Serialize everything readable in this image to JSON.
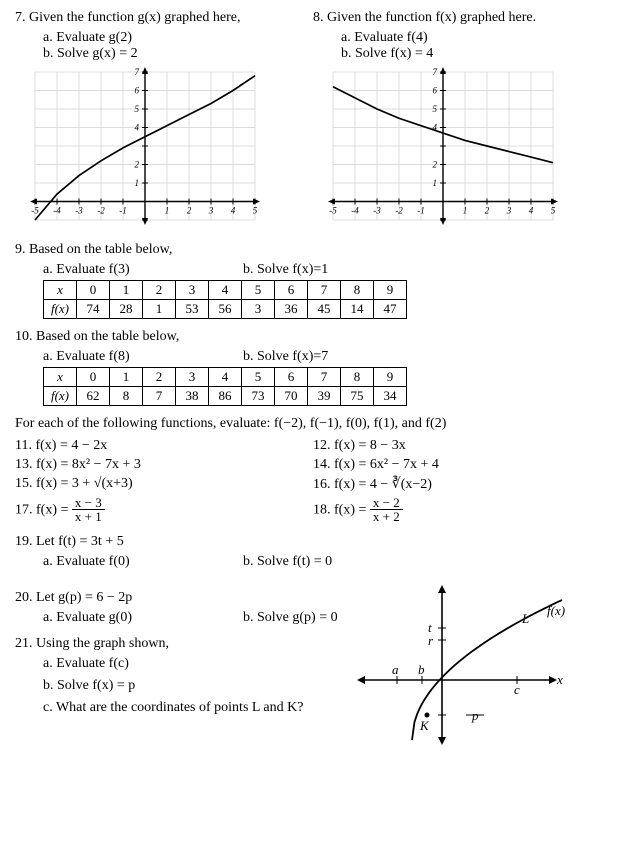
{
  "q7": {
    "stem": "7. Given the function  g(x)  graphed here,",
    "a": "a.    Evaluate  g(2)",
    "b": "b.    Solve  g(x) = 2",
    "chart": {
      "type": "line",
      "xlim": [
        -5,
        5
      ],
      "ylim": [
        -1,
        7
      ],
      "xticks": [
        -5,
        -4,
        -3,
        -2,
        -1,
        1,
        2,
        3,
        4,
        5
      ],
      "yticks": [
        -1,
        1,
        2,
        3,
        4,
        5,
        6,
        7
      ],
      "ylabels_shown": [
        1,
        2,
        4,
        5,
        6,
        7
      ],
      "grid_color": "#d0d0d0",
      "axis_color": "#000000",
      "curve_color": "#000000",
      "points_x": [
        -5,
        -4,
        -3,
        -2,
        -1,
        0,
        1,
        2,
        3,
        4,
        5
      ],
      "points_y": [
        -1,
        0.4,
        1.4,
        2.2,
        2.9,
        3.5,
        4.1,
        4.7,
        5.3,
        6.0,
        6.8
      ]
    }
  },
  "q8": {
    "stem": "8. Given the function  f(x)  graphed here.",
    "a": "a.    Evaluate  f(4)",
    "b": "b.    Solve  f(x) = 4",
    "chart": {
      "type": "line",
      "xlim": [
        -5,
        5
      ],
      "ylim": [
        -1,
        7
      ],
      "xticks": [
        -5,
        -4,
        -3,
        -2,
        -1,
        1,
        2,
        3,
        4,
        5
      ],
      "yticks": [
        -1,
        1,
        2,
        3,
        4,
        5,
        6,
        7
      ],
      "ylabels_shown": [
        1,
        2,
        4,
        5,
        6,
        7
      ],
      "grid_color": "#d0d0d0",
      "axis_color": "#000000",
      "curve_color": "#000000",
      "points_x": [
        -5,
        -4,
        -3,
        -2,
        -1,
        0,
        1,
        2,
        3,
        4,
        5
      ],
      "points_y": [
        6.2,
        5.6,
        5.0,
        4.5,
        4.1,
        3.7,
        3.3,
        3.0,
        2.7,
        2.4,
        2.1
      ]
    }
  },
  "q9": {
    "stem": "9. Based on the table below,",
    "a": "a. Evaluate  f(3)",
    "b": "b. Solve  f(x)=1",
    "table": {
      "header_label": "x",
      "row_label": "f(x)",
      "x": [
        "0",
        "1",
        "2",
        "3",
        "4",
        "5",
        "6",
        "7",
        "8",
        "9"
      ],
      "fx": [
        "74",
        "28",
        "1",
        "53",
        "56",
        "3",
        "36",
        "45",
        "14",
        "47"
      ]
    }
  },
  "q10": {
    "stem": "10. Based on the table below,",
    "a": "a. Evaluate  f(8)",
    "b": "b. Solve  f(x)=7",
    "table": {
      "header_label": "x",
      "row_label": "f(x)",
      "x": [
        "0",
        "1",
        "2",
        "3",
        "4",
        "5",
        "6",
        "7",
        "8",
        "9"
      ],
      "fx": [
        "62",
        "8",
        "7",
        "38",
        "86",
        "73",
        "70",
        "39",
        "75",
        "34"
      ]
    }
  },
  "eval_intro": "For each of the following functions, evaluate:   f(−2),  f(−1),  f(0),  f(1), and  f(2)",
  "funcs": {
    "f11": "11.  f(x) = 4 − 2x",
    "f12": "12.  f(x) = 8 − 3x",
    "f13": "13.  f(x) = 8x² − 7x + 3",
    "f14": "14.  f(x) = 6x² − 7x + 4",
    "f15": "15.  f(x) = 3 + √(x+3)",
    "f16": "16.  f(x) = 4 − ∛(x−2)",
    "f17_lead": "17.  f(x) = ",
    "f17_num": "x − 3",
    "f17_den": "x + 1",
    "f18_lead": "18.  f(x) = ",
    "f18_num": "x − 2",
    "f18_den": "x + 2"
  },
  "q19": {
    "stem": "19. Let  f(t) = 3t + 5",
    "a": "a. Evaluate  f(0)",
    "b": "b. Solve  f(t) = 0"
  },
  "q20": {
    "stem": "20. Let  g(p) = 6 − 2p",
    "a": "a. Evaluate  g(0)",
    "b": "b. Solve  g(p) = 0"
  },
  "q21": {
    "stem": "21. Using the graph shown,",
    "a": "a.    Evaluate  f(c)",
    "b": "b.    Solve  f(x) = p",
    "c": "c.    What are the coordinates of points L and K?",
    "diagram": {
      "axis_color": "#000000",
      "curve_color": "#000000",
      "labels": {
        "fx": "f(x)",
        "x": "x",
        "a": "a",
        "b": "b",
        "c": "c",
        "t": "t",
        "r": "r",
        "p": "p",
        "L": "L",
        "K": "K"
      },
      "label_fontsize": 13,
      "label_font_style": "italic"
    }
  }
}
